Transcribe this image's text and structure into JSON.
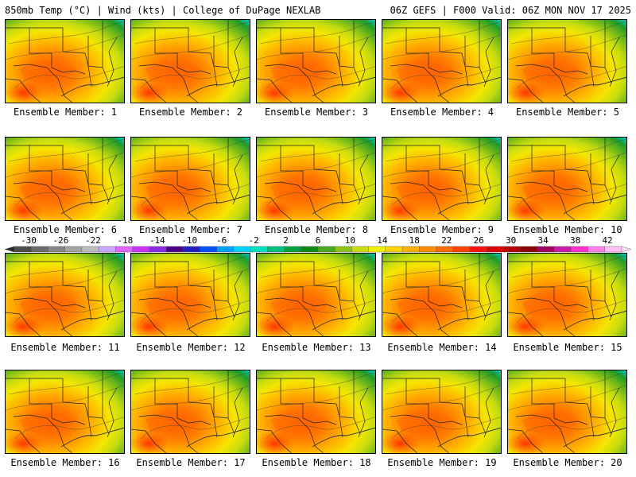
{
  "header": {
    "left": "850mb Temp (°C) | Wind (kts) | College of DuPage NEXLAB",
    "right": "06Z GEFS | F000 Valid: 06Z MON NOV 17 2025"
  },
  "panels": [
    {
      "label": "Ensemble Member: 1"
    },
    {
      "label": "Ensemble Member: 2"
    },
    {
      "label": "Ensemble Member: 3"
    },
    {
      "label": "Ensemble Member: 4"
    },
    {
      "label": "Ensemble Member: 5"
    },
    {
      "label": "Ensemble Member: 6"
    },
    {
      "label": "Ensemble Member: 7"
    },
    {
      "label": "Ensemble Member: 8"
    },
    {
      "label": "Ensemble Member: 9"
    },
    {
      "label": "Ensemble Member: 10"
    },
    {
      "label": "Ensemble Member: 11"
    },
    {
      "label": "Ensemble Member: 12"
    },
    {
      "label": "Ensemble Member: 13"
    },
    {
      "label": "Ensemble Member: 14"
    },
    {
      "label": "Ensemble Member: 15"
    },
    {
      "label": "Ensemble Member: 16"
    },
    {
      "label": "Ensemble Member: 17"
    },
    {
      "label": "Ensemble Member: 18"
    },
    {
      "label": "Ensemble Member: 19"
    },
    {
      "label": "Ensemble Member: 20"
    }
  ],
  "colorbar": {
    "ticks": [
      "-30",
      "-26",
      "-22",
      "-18",
      "-14",
      "-10",
      "-6",
      "-2",
      "2",
      "6",
      "10",
      "14",
      "18",
      "22",
      "26",
      "30",
      "34",
      "38",
      "42"
    ],
    "colors": [
      "#4d4d4d",
      "#6b6b6b",
      "#878787",
      "#a3a3a3",
      "#bdbdbd",
      "#c8a8ff",
      "#e066ff",
      "#cc33ff",
      "#8a2be2",
      "#4b0082",
      "#2020c0",
      "#0050ff",
      "#00a0ff",
      "#00d4ff",
      "#00e0c0",
      "#00c080",
      "#00a040",
      "#108a10",
      "#4aa820",
      "#8cc21a",
      "#c8dc10",
      "#f0f000",
      "#ffd400",
      "#ffb000",
      "#ff8c00",
      "#ff6a00",
      "#ff4000",
      "#ff1010",
      "#dc0000",
      "#b40000",
      "#8c0000",
      "#a00060",
      "#cc1aa8",
      "#ff33cc",
      "#ff80e8",
      "#ffc0f5"
    ]
  }
}
